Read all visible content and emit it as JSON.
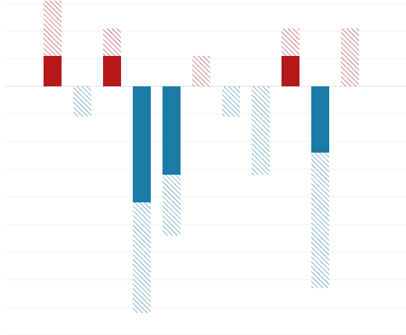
{
  "chart_data": {
    "type": "bar",
    "stacked": true,
    "categories": [
      null,
      null,
      null,
      null,
      null,
      null,
      null,
      null,
      null,
      null,
      null,
      null
    ],
    "series": [
      {
        "name": null,
        "fill": "solid",
        "values": [
          1.1,
          0,
          1.1,
          -4.2,
          -3.2,
          0,
          0,
          0,
          1.1,
          -2.4,
          0,
          null
        ]
      },
      {
        "name": null,
        "fill": "hatch",
        "values": [
          2.0,
          -1.1,
          1.0,
          -4.0,
          -2.2,
          1.1,
          -1.1,
          -3.2,
          1.0,
          -4.9,
          2.1,
          null
        ]
      }
    ],
    "colors": {
      "positive": "#b5191a",
      "negative": "#1a7ba6"
    },
    "ylim": [
      -9,
      3.125
    ],
    "yticks": [
      -9,
      -8,
      -7,
      -6,
      -5,
      -4,
      -3,
      -2,
      -1,
      0,
      1,
      2,
      3
    ],
    "grid": true
  }
}
